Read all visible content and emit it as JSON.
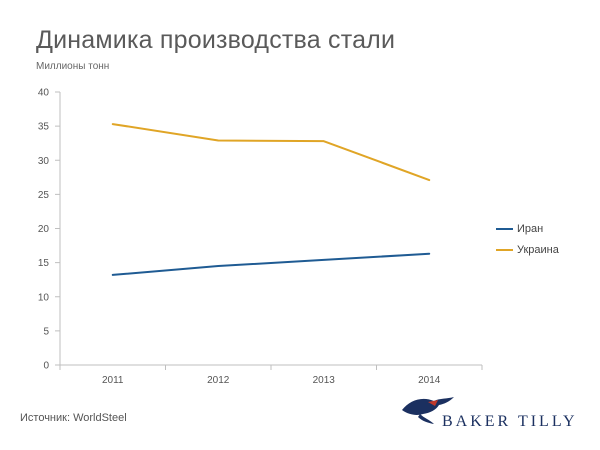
{
  "title": "Динамика производства стали",
  "subtitle": "Миллионы тонн",
  "source": "Источник: WorldSteel",
  "logo": {
    "text": "BAKER TILLY",
    "icon": "eagle-logo-icon"
  },
  "colors": {
    "iran": "#1f5b93",
    "ukraine": "#e0a526",
    "axis": "#bfbfbf",
    "text": "#5a5a5a"
  },
  "chart_data": {
    "type": "line",
    "title": "Динамика производства стали",
    "ylabel": "Миллионы тонн",
    "categories": [
      "2011",
      "2012",
      "2013",
      "2014"
    ],
    "ylim": [
      0,
      40
    ],
    "yticks": [
      0,
      5,
      10,
      15,
      20,
      25,
      30,
      35,
      40
    ],
    "grid": false,
    "legend_position": "right",
    "series": [
      {
        "name": "Иран",
        "values": [
          13.2,
          14.5,
          15.4,
          16.3
        ]
      },
      {
        "name": "Украина",
        "values": [
          35.3,
          32.9,
          32.8,
          27.1
        ]
      }
    ]
  }
}
